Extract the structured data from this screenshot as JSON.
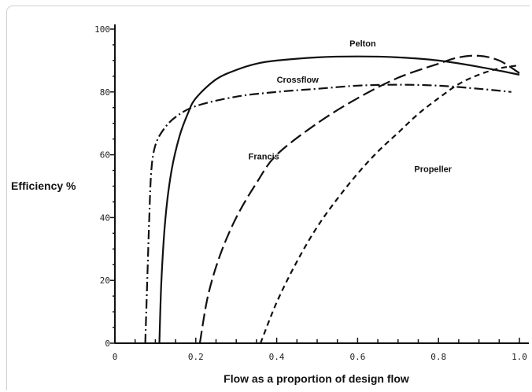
{
  "chart_data": {
    "type": "line",
    "title": "",
    "xlabel": "Flow as a proportion of design flow",
    "ylabel": "Efficiency %",
    "xlim": [
      0,
      1.0
    ],
    "ylim": [
      0,
      100
    ],
    "x_ticks": [
      0,
      0.2,
      0.4,
      0.6,
      0.8,
      1.0
    ],
    "x_tick_labels": [
      "0",
      "0.2",
      "0.4",
      "0.6",
      "0.8",
      "1.0"
    ],
    "y_ticks": [
      0,
      20,
      40,
      60,
      80,
      100
    ],
    "y_tick_labels": [
      "0",
      "20",
      "40",
      "60",
      "80",
      "100"
    ],
    "grid": false,
    "legend": "none",
    "series": [
      {
        "name": "Pelton",
        "style": "solid",
        "color": "#111111",
        "x": [
          0.11,
          0.115,
          0.125,
          0.14,
          0.16,
          0.18,
          0.2,
          0.25,
          0.3,
          0.35,
          0.4,
          0.5,
          0.6,
          0.7,
          0.8,
          0.9,
          1.0
        ],
        "y": [
          0,
          20,
          40,
          55,
          66,
          73,
          78,
          84,
          87,
          89,
          90,
          91,
          91.3,
          91,
          90,
          88,
          85.5
        ]
      },
      {
        "name": "Crossflow",
        "style": "dashdot",
        "color": "#111111",
        "x": [
          0.075,
          0.08,
          0.085,
          0.09,
          0.1,
          0.12,
          0.15,
          0.2,
          0.3,
          0.4,
          0.5,
          0.6,
          0.7,
          0.8,
          0.9,
          0.98
        ],
        "y": [
          0,
          20,
          40,
          55,
          63,
          68,
          72,
          75.5,
          78.5,
          80,
          81,
          82,
          82.3,
          82,
          81,
          80
        ]
      },
      {
        "name": "Francis",
        "style": "longdash",
        "color": "#111111",
        "x": [
          0.21,
          0.23,
          0.26,
          0.3,
          0.35,
          0.4,
          0.5,
          0.6,
          0.7,
          0.8,
          0.85,
          0.9,
          0.95,
          1.0
        ],
        "y": [
          0,
          15,
          28,
          40,
          51,
          60,
          70,
          78,
          84.5,
          89,
          91,
          91.5,
          90,
          86
        ]
      },
      {
        "name": "Propeller",
        "style": "shortdash",
        "color": "#111111",
        "x": [
          0.36,
          0.4,
          0.45,
          0.5,
          0.55,
          0.6,
          0.65,
          0.7,
          0.75,
          0.8,
          0.85,
          0.9,
          0.95,
          1.0
        ],
        "y": [
          0,
          13,
          26,
          37,
          46,
          54,
          61,
          67,
          73,
          78,
          82.5,
          85.5,
          87.5,
          88.5
        ]
      }
    ],
    "annotations": [
      {
        "text": "Pelton",
        "series": "Pelton",
        "x": 0.58,
        "y": 94.5
      },
      {
        "text": "Crossflow",
        "series": "Crossflow",
        "x": 0.4,
        "y": 83
      },
      {
        "text": "Francis",
        "series": "Francis",
        "x": 0.33,
        "y": 58.5
      },
      {
        "text": "Propeller",
        "series": "Propeller",
        "x": 0.74,
        "y": 54.5
      }
    ]
  }
}
